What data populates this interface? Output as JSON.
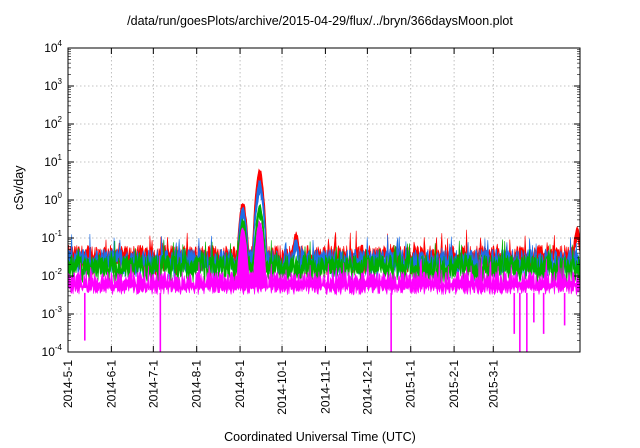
{
  "chart_data": {
    "type": "line",
    "title": "/data/run/goesPlots/archive/2015-04-29/flux/../bryn/366daysMoon.plot",
    "xlabel": "Coordinated Universal Time (UTC)",
    "ylabel": "cSv/day",
    "yscale": "log",
    "ylim": [
      0.0001,
      10000
    ],
    "y_ticks": [
      {
        "base": "10",
        "exp": "-4",
        "value": 0.0001
      },
      {
        "base": "10",
        "exp": "-3",
        "value": 0.001
      },
      {
        "base": "10",
        "exp": "-2",
        "value": 0.01
      },
      {
        "base": "10",
        "exp": "-1",
        "value": 0.1
      },
      {
        "base": "10",
        "exp": "0",
        "value": 1
      },
      {
        "base": "10",
        "exp": "1",
        "value": 10
      },
      {
        "base": "10",
        "exp": "2",
        "value": 100
      },
      {
        "base": "10",
        "exp": "3",
        "value": 1000
      },
      {
        "base": "10",
        "exp": "4",
        "value": 10000
      }
    ],
    "x_range_days": [
      0,
      366
    ],
    "x_ticks": [
      {
        "label": "2014-5-1",
        "day": 0
      },
      {
        "label": "2014-6-1",
        "day": 31
      },
      {
        "label": "2014-7-1",
        "day": 61
      },
      {
        "label": "2014-8-1",
        "day": 92
      },
      {
        "label": "2014-9-1",
        "day": 123
      },
      {
        "label": "2014-10-1",
        "day": 153
      },
      {
        "label": "2014-11-1",
        "day": 184
      },
      {
        "label": "2014-12-1",
        "day": 214
      },
      {
        "label": "2015-1-1",
        "day": 245
      },
      {
        "label": "2015-2-1",
        "day": 276
      },
      {
        "label": "2015-3-1",
        "day": 304
      }
    ],
    "grid": true,
    "series": [
      {
        "name": "red",
        "color": "#ff0000",
        "baseline": 0.045,
        "events": [
          {
            "day": 125,
            "value": 1.0
          },
          {
            "day": 137,
            "value": 7.0
          },
          {
            "day": 163,
            "value": 0.15
          },
          {
            "day": 364,
            "value": 0.2
          }
        ]
      },
      {
        "name": "blue",
        "color": "#1e6ee6",
        "baseline": 0.035,
        "events": [
          {
            "day": 125,
            "value": 0.7
          },
          {
            "day": 137,
            "value": 3.5
          },
          {
            "day": 163,
            "value": 0.1
          }
        ]
      },
      {
        "name": "green",
        "color": "#00b000",
        "baseline": 0.025,
        "events": [
          {
            "day": 125,
            "value": 0.35
          },
          {
            "day": 137,
            "value": 0.8
          }
        ]
      },
      {
        "name": "magenta",
        "color": "#ff00ff",
        "baseline": 0.009,
        "floor": 0.004,
        "events": [
          {
            "day": 125,
            "value": 0.2
          },
          {
            "day": 137,
            "value": 0.3
          }
        ],
        "dips": [
          {
            "day": 12,
            "value": 0.0002
          },
          {
            "day": 66,
            "value": 0.0001
          },
          {
            "day": 231,
            "value": 0.0001
          },
          {
            "day": 319,
            "value": 0.0003
          },
          {
            "day": 323,
            "value": 0.0001
          },
          {
            "day": 328,
            "value": 0.0001
          },
          {
            "day": 333,
            "value": 0.0006
          },
          {
            "day": 340,
            "value": 0.0003
          },
          {
            "day": 355,
            "value": 0.0005
          }
        ]
      }
    ]
  }
}
